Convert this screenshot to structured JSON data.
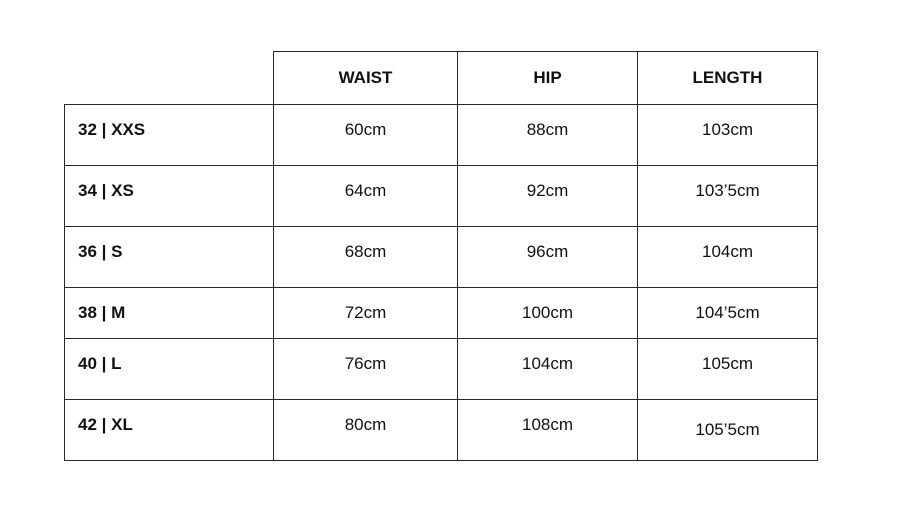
{
  "headers": [
    "",
    "WAIST",
    "HIP",
    "LENGTH"
  ],
  "rows": [
    {
      "size": "32 | XXS",
      "waist": "60cm",
      "hip": "88cm",
      "length": "103cm"
    },
    {
      "size": "34 | XS",
      "waist": "64cm",
      "hip": "92cm",
      "length": "103’5cm"
    },
    {
      "size": "36 | S",
      "waist": "68cm",
      "hip": "96cm",
      "length": "104cm"
    },
    {
      "size": "38 | M",
      "waist": "72cm",
      "hip": "100cm",
      "length": "104’5cm"
    },
    {
      "size": "40 | L",
      "waist": "76cm",
      "hip": "104cm",
      "length": "105cm"
    },
    {
      "size": "42 | XL",
      "waist": "80cm",
      "hip": "108cm",
      "length": "105’5cm"
    }
  ]
}
